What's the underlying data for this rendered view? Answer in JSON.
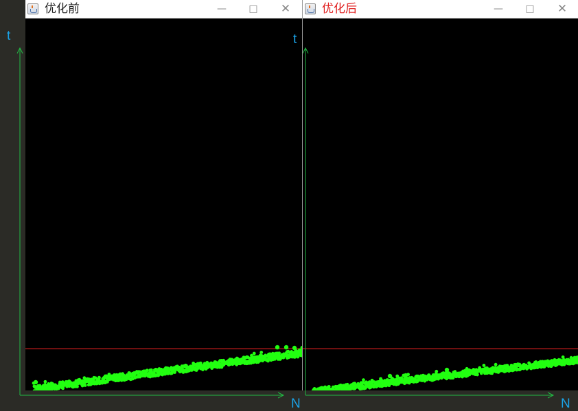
{
  "windows": [
    {
      "title": "优化前",
      "title_color": "#222222",
      "controls": {
        "minimize": "minimize-icon",
        "maximize": "maximize-icon",
        "close": "close-icon"
      }
    },
    {
      "title": "优化后",
      "title_color": "#e02020",
      "controls": {
        "minimize": "minimize-icon",
        "maximize": "maximize-icon",
        "close": "close-icon"
      }
    }
  ],
  "axes": {
    "left": {
      "y_label": "t",
      "x_label": "N"
    },
    "right": {
      "y_label": "t",
      "x_label": "N"
    }
  },
  "colors": {
    "points": "#22ff11",
    "reference_line": "#e02020",
    "axis": "#22bb44",
    "axis_label": "#1aa3e8"
  }
}
